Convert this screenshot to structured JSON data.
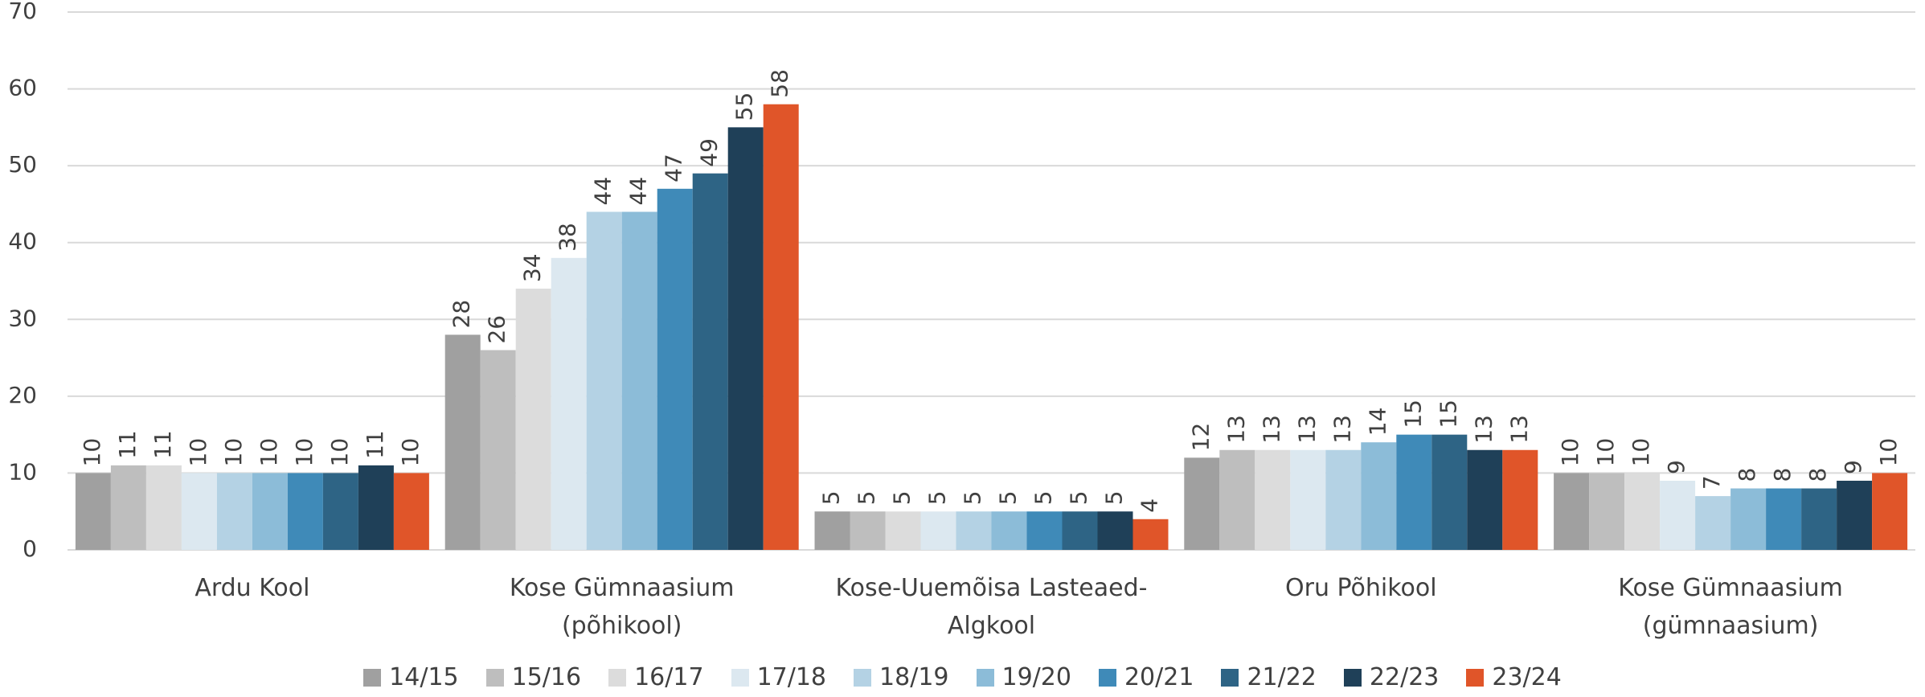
{
  "chart_data": {
    "type": "bar",
    "categories": [
      "Ardu Kool",
      "Kose Gümnaasium (põhikool)",
      "Kose-Uuemõisa Lasteaed-Algkool",
      "Oru Põhikool",
      "Kose Gümnaasium (gümnaasium)"
    ],
    "series": [
      {
        "name": "14/15",
        "color": "#a0a0a0",
        "values": [
          10,
          28,
          5,
          12,
          10
        ]
      },
      {
        "name": "15/16",
        "color": "#bebebe",
        "values": [
          11,
          26,
          5,
          13,
          10
        ]
      },
      {
        "name": "16/17",
        "color": "#dcdcdc",
        "values": [
          11,
          34,
          5,
          13,
          10
        ]
      },
      {
        "name": "17/18",
        "color": "#dce8f0",
        "values": [
          10,
          38,
          5,
          13,
          9
        ]
      },
      {
        "name": "18/19",
        "color": "#b4d2e4",
        "values": [
          10,
          44,
          5,
          13,
          7
        ]
      },
      {
        "name": "19/20",
        "color": "#8cbcd8",
        "values": [
          10,
          44,
          5,
          14,
          8
        ]
      },
      {
        "name": "20/21",
        "color": "#3f8ab8",
        "values": [
          10,
          47,
          5,
          15,
          8
        ]
      },
      {
        "name": "21/22",
        "color": "#2e6485",
        "values": [
          10,
          49,
          5,
          15,
          8
        ]
      },
      {
        "name": "22/23",
        "color": "#1f4058",
        "values": [
          11,
          55,
          5,
          13,
          9
        ]
      },
      {
        "name": "23/24",
        "color": "#e05529",
        "values": [
          10,
          58,
          4,
          13,
          10
        ]
      }
    ],
    "ylim": [
      0,
      70
    ],
    "yticks": [
      0,
      10,
      20,
      30,
      40,
      50,
      60,
      70
    ],
    "grid": true,
    "legend": "bottom"
  }
}
